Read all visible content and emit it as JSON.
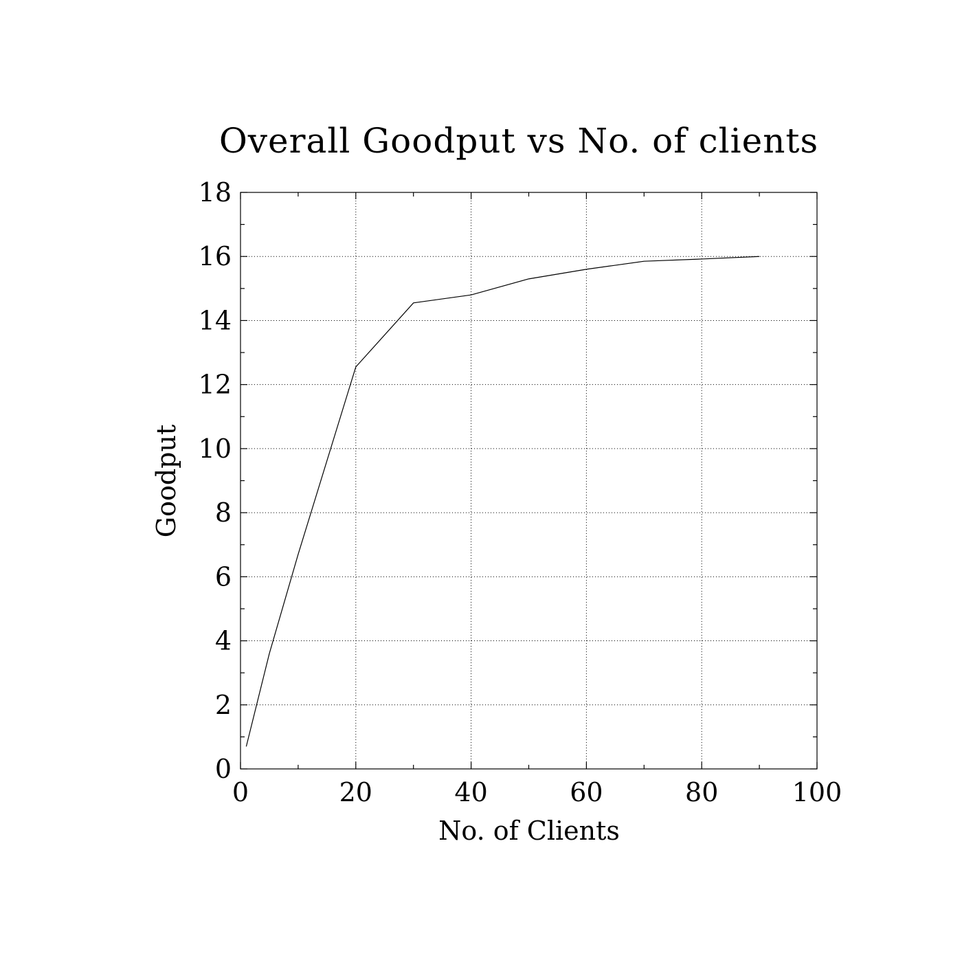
{
  "chart_data": {
    "type": "line",
    "title": "Overall Goodput vs No. of clients",
    "xlabel": "No. of Clients",
    "ylabel": "Goodput",
    "xlim": [
      0,
      100
    ],
    "ylim": [
      0,
      18
    ],
    "xticks": [
      0,
      20,
      40,
      60,
      80,
      100
    ],
    "yticks": [
      0,
      2,
      4,
      6,
      8,
      10,
      12,
      14,
      16,
      18
    ],
    "x_minor_step": 10,
    "y_minor_step": 1,
    "grid": true,
    "series": [
      {
        "x": [
          1,
          5,
          10,
          20,
          30,
          40,
          50,
          60,
          70,
          80,
          90
        ],
        "y": [
          0.7,
          3.6,
          6.7,
          12.55,
          14.55,
          14.8,
          15.3,
          15.6,
          15.85,
          15.92,
          16.0
        ],
        "color": "#000000"
      }
    ]
  }
}
